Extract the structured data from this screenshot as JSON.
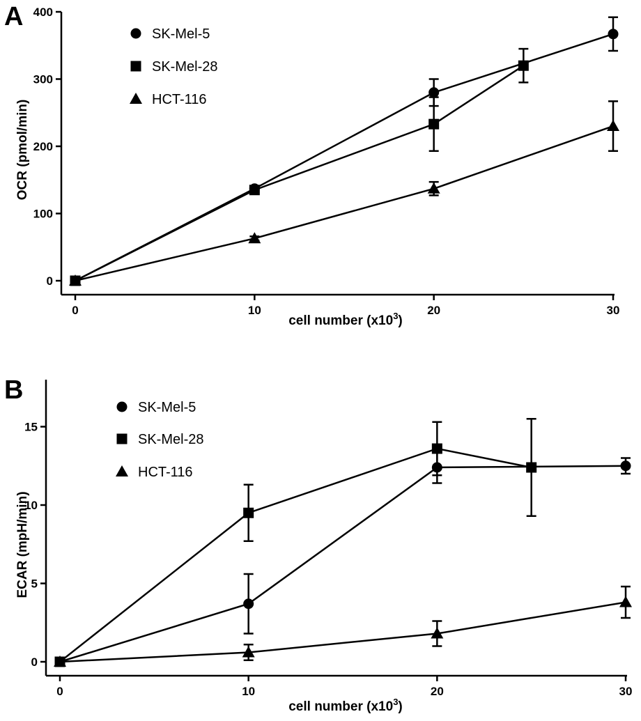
{
  "chart_data": [
    {
      "panel": "A",
      "type": "line",
      "xlabel": "cell number (x10",
      "xlabel_sup": "3",
      "xlabel_close": ")",
      "ylabel": "OCR (pmol/min)",
      "xlim": [
        0,
        30
      ],
      "ylim": [
        0,
        400
      ],
      "xticks": [
        0,
        10,
        20,
        30
      ],
      "yticks": [
        0,
        100,
        200,
        300,
        400
      ],
      "legend_position": "top-left",
      "grid": false,
      "series": [
        {
          "name": "SK-Mel-5",
          "marker": "circle",
          "x": [
            0,
            10,
            20,
            30
          ],
          "y": [
            0,
            137,
            280,
            367
          ],
          "err": [
            0,
            4,
            20,
            25
          ]
        },
        {
          "name": "SK-Mel-28",
          "marker": "square",
          "x": [
            0,
            10,
            20,
            25
          ],
          "y": [
            0,
            135,
            233,
            320
          ],
          "err": [
            0,
            4,
            40,
            25
          ]
        },
        {
          "name": "HCT-116",
          "marker": "triangle",
          "x": [
            0,
            10,
            20,
            30
          ],
          "y": [
            0,
            63,
            137,
            230
          ],
          "err": [
            0,
            3,
            10,
            37
          ]
        }
      ]
    },
    {
      "panel": "B",
      "type": "line",
      "xlabel": "cell number (x10",
      "xlabel_sup": "3",
      "xlabel_close": ")",
      "ylabel": "ECAR (mpH/min)",
      "xlim": [
        0,
        30
      ],
      "ylim": [
        0,
        18
      ],
      "xticks": [
        0,
        10,
        20,
        30
      ],
      "yticks": [
        0,
        5,
        10,
        15
      ],
      "legend_position": "top-left",
      "grid": false,
      "series": [
        {
          "name": "SK-Mel-5",
          "marker": "circle",
          "x": [
            0,
            10,
            20,
            30
          ],
          "y": [
            0,
            3.7,
            12.4,
            12.5
          ],
          "err": [
            0,
            1.9,
            1.0,
            0.5
          ]
        },
        {
          "name": "SK-Mel-28",
          "marker": "square",
          "x": [
            0,
            10,
            20,
            25
          ],
          "y": [
            0,
            9.5,
            13.6,
            12.4
          ],
          "err": [
            0,
            1.8,
            1.7,
            3.1
          ]
        },
        {
          "name": "HCT-116",
          "marker": "triangle",
          "x": [
            0,
            10,
            20,
            30
          ],
          "y": [
            0,
            0.6,
            1.8,
            3.8
          ],
          "err": [
            0,
            0.5,
            0.8,
            1.0
          ]
        }
      ]
    }
  ]
}
